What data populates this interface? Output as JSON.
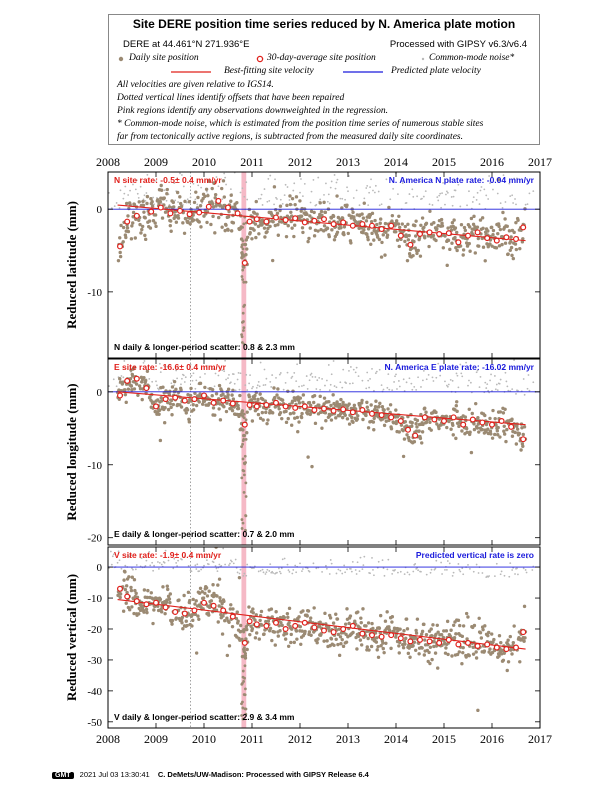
{
  "header": {
    "title": "Site DERE position time series reduced by N. America plate motion",
    "site_location": "DERE at 44.461°N 271.936°E",
    "processed_with": "Processed with GIPSY v6.3/v6.4",
    "legend_daily": "Daily site position",
    "legend_avg": "30-day-average site position",
    "legend_cm": "Common-mode noise*",
    "legend_best": "Best-fitting site velocity",
    "legend_pred": "Predicted plate velocity",
    "notes": [
      "All velocities are given relative to IGS14.",
      "Dotted vertical lines identify offsets that have been repaired",
      "Pink regions identify any observations downweighted in the regression.",
      "* Common-mode noise, which is estimated from the position time series of numerous stable sites",
      "far from tectonically active regions, is subtracted from the measured daily site coordinates."
    ]
  },
  "colors": {
    "daily": "#9b8a73",
    "common_mode": "#b9b9b9",
    "average": "#e0201b",
    "best_fit": "#e0201b",
    "predicted": "#1a1adc",
    "pink": "#f2a8b8"
  },
  "chart_data": [
    {
      "type": "scatter",
      "id": "north",
      "ylabel": "Reduced latitude (mm)",
      "xlim": [
        2008,
        2017
      ],
      "ylim": [
        -18,
        4.5
      ],
      "yticks": [
        0,
        -10
      ],
      "xticks": [
        2008,
        2009,
        2010,
        2011,
        2012,
        2013,
        2014,
        2015,
        2016,
        2017
      ],
      "grid": false,
      "site_rate_label": "N site rate:  -0.5± 0.4 mm/yr",
      "plate_rate_label": "N. America N plate rate: -0.04 mm/yr",
      "scatter_label": "N daily & longer-period scatter:   0.8 &   2.3 mm",
      "best_fit": {
        "x": [
          2008.2,
          2016.7
        ],
        "y": [
          0.5,
          -3.8
        ]
      },
      "predicted_value": 0,
      "offsets": [
        2009.72
      ],
      "pink_range": [
        2010.78,
        2010.88
      ],
      "avg_points": [
        [
          2008.25,
          -4.5
        ],
        [
          2008.4,
          -1.5
        ],
        [
          2008.6,
          -0.8
        ],
        [
          2008.9,
          -0.3
        ],
        [
          2009.1,
          0.2
        ],
        [
          2009.3,
          -0.5
        ],
        [
          2009.5,
          -0.2
        ],
        [
          2009.7,
          -0.6
        ],
        [
          2009.9,
          -0.4
        ],
        [
          2010.1,
          0.3
        ],
        [
          2010.3,
          1.0
        ],
        [
          2010.5,
          0.2
        ],
        [
          2010.7,
          -0.5
        ],
        [
          2010.85,
          -6.5
        ],
        [
          2010.95,
          -1.5
        ],
        [
          2011.1,
          -1.2
        ],
        [
          2011.3,
          -1.5
        ],
        [
          2011.5,
          -1.0
        ],
        [
          2011.7,
          -1.3
        ],
        [
          2011.9,
          -1.1
        ],
        [
          2012.1,
          -1.6
        ],
        [
          2012.3,
          -1.4
        ],
        [
          2012.5,
          -1.2
        ],
        [
          2012.7,
          -1.8
        ],
        [
          2012.9,
          -1.6
        ],
        [
          2013.1,
          -2.0
        ],
        [
          2013.3,
          -1.8
        ],
        [
          2013.5,
          -2.0
        ],
        [
          2013.7,
          -2.4
        ],
        [
          2013.9,
          -2.0
        ],
        [
          2014.1,
          -3.2
        ],
        [
          2014.3,
          -4.3
        ],
        [
          2014.5,
          -3.0
        ],
        [
          2014.7,
          -2.8
        ],
        [
          2014.9,
          -3.0
        ],
        [
          2015.1,
          -2.9
        ],
        [
          2015.3,
          -4.0
        ],
        [
          2015.5,
          -3.2
        ],
        [
          2015.7,
          -2.8
        ],
        [
          2015.9,
          -3.5
        ],
        [
          2016.1,
          -3.8
        ],
        [
          2016.3,
          -3.4
        ],
        [
          2016.5,
          -3.6
        ],
        [
          2016.65,
          -2.2
        ]
      ]
    },
    {
      "type": "scatter",
      "id": "east",
      "ylabel": "Reduced longitude (mm)",
      "xlim": [
        2008,
        2017
      ],
      "ylim": [
        -21,
        4.5
      ],
      "yticks": [
        0,
        -10,
        -20
      ],
      "xticks": [
        2008,
        2009,
        2010,
        2011,
        2012,
        2013,
        2014,
        2015,
        2016,
        2017
      ],
      "grid": false,
      "site_rate_label": "E site rate: -16.6± 0.4 mm/yr",
      "plate_rate_label": "N. America E plate rate: -16.02 mm/yr",
      "scatter_label": "E daily & longer-period scatter:   0.7 &   2.0 mm",
      "best_fit": {
        "x": [
          2008.2,
          2016.7
        ],
        "y": [
          0.0,
          -4.5
        ]
      },
      "predicted_value": 0,
      "offsets": [
        2009.72
      ],
      "pink_range": [
        2010.78,
        2010.88
      ],
      "avg_points": [
        [
          2008.25,
          -0.5
        ],
        [
          2008.4,
          1.5
        ],
        [
          2008.6,
          1.8
        ],
        [
          2008.8,
          0.5
        ],
        [
          2009.0,
          -2.0
        ],
        [
          2009.2,
          -1.0
        ],
        [
          2009.4,
          -0.8
        ],
        [
          2009.6,
          -1.2
        ],
        [
          2009.8,
          -1.0
        ],
        [
          2010.0,
          -0.5
        ],
        [
          2010.2,
          -1.5
        ],
        [
          2010.4,
          -1.2
        ],
        [
          2010.6,
          -1.6
        ],
        [
          2010.85,
          -4.5
        ],
        [
          2010.95,
          -1.8
        ],
        [
          2011.1,
          -2.0
        ],
        [
          2011.3,
          -1.8
        ],
        [
          2011.5,
          -1.5
        ],
        [
          2011.7,
          -2.0
        ],
        [
          2011.9,
          -2.2
        ],
        [
          2012.1,
          -2.0
        ],
        [
          2012.3,
          -2.5
        ],
        [
          2012.5,
          -2.3
        ],
        [
          2012.7,
          -2.6
        ],
        [
          2012.9,
          -2.4
        ],
        [
          2013.1,
          -2.8
        ],
        [
          2013.3,
          -2.5
        ],
        [
          2013.5,
          -3.0
        ],
        [
          2013.7,
          -3.2
        ],
        [
          2013.9,
          -3.5
        ],
        [
          2014.1,
          -4.0
        ],
        [
          2014.25,
          -5.2
        ],
        [
          2014.4,
          -6.0
        ],
        [
          2014.6,
          -3.5
        ],
        [
          2014.8,
          -3.8
        ],
        [
          2015.0,
          -4.0
        ],
        [
          2015.2,
          -3.5
        ],
        [
          2015.4,
          -4.5
        ],
        [
          2015.6,
          -3.8
        ],
        [
          2015.8,
          -4.2
        ],
        [
          2016.0,
          -4.5
        ],
        [
          2016.2,
          -4.0
        ],
        [
          2016.4,
          -4.8
        ],
        [
          2016.65,
          -6.5
        ]
      ]
    },
    {
      "type": "scatter",
      "id": "vertical",
      "ylabel": "Reduced vertical (mm)",
      "xlim": [
        2008,
        2017
      ],
      "ylim": [
        -52,
        6.5
      ],
      "yticks": [
        0,
        -10,
        -20,
        -30,
        -40,
        -50
      ],
      "xticks": [
        2008,
        2009,
        2010,
        2011,
        2012,
        2013,
        2014,
        2015,
        2016,
        2017
      ],
      "grid": false,
      "site_rate_label": "V site rate:  -1.9± 0.4 mm/yr",
      "plate_rate_label": "Predicted vertical rate is zero",
      "scatter_label": "V daily & longer-period scatter:   2.9 &   3.4 mm",
      "best_fit": {
        "x": [
          2008.2,
          2016.7
        ],
        "y": [
          -10.5,
          -26.5
        ]
      },
      "predicted_value": 0,
      "offsets": [
        2009.72
      ],
      "pink_range": [
        2010.78,
        2010.88
      ],
      "avg_points": [
        [
          2008.25,
          -7.0
        ],
        [
          2008.4,
          -9.5
        ],
        [
          2008.6,
          -11.0
        ],
        [
          2008.8,
          -12.0
        ],
        [
          2009.0,
          -11.5
        ],
        [
          2009.2,
          -13.0
        ],
        [
          2009.4,
          -14.5
        ],
        [
          2009.6,
          -15.0
        ],
        [
          2009.8,
          -14.0
        ],
        [
          2010.0,
          -11.5
        ],
        [
          2010.2,
          -12.5
        ],
        [
          2010.4,
          -14.0
        ],
        [
          2010.6,
          -16.0
        ],
        [
          2010.85,
          -24.5
        ],
        [
          2010.95,
          -17.5
        ],
        [
          2011.1,
          -18.5
        ],
        [
          2011.3,
          -19.0
        ],
        [
          2011.5,
          -18.0
        ],
        [
          2011.7,
          -20.0
        ],
        [
          2011.9,
          -19.0
        ],
        [
          2012.1,
          -18.0
        ],
        [
          2012.3,
          -19.5
        ],
        [
          2012.5,
          -20.5
        ],
        [
          2012.7,
          -21.0
        ],
        [
          2012.9,
          -20.0
        ],
        [
          2013.1,
          -19.0
        ],
        [
          2013.3,
          -21.5
        ],
        [
          2013.5,
          -22.0
        ],
        [
          2013.7,
          -22.5
        ],
        [
          2013.9,
          -22.0
        ],
        [
          2014.1,
          -23.0
        ],
        [
          2014.3,
          -24.0
        ],
        [
          2014.5,
          -23.5
        ],
        [
          2014.7,
          -24.0
        ],
        [
          2014.9,
          -24.5
        ],
        [
          2015.1,
          -23.5
        ],
        [
          2015.3,
          -25.0
        ],
        [
          2015.5,
          -24.5
        ],
        [
          2015.7,
          -25.5
        ],
        [
          2015.9,
          -25.0
        ],
        [
          2016.1,
          -26.0
        ],
        [
          2016.3,
          -26.5
        ],
        [
          2016.5,
          -26.0
        ],
        [
          2016.65,
          -21.0
        ]
      ]
    }
  ],
  "footer": {
    "logo": "GMT",
    "timestamp": "2021 Jul 03 13:30:41",
    "credit": "C. DeMets/UW-Madison: Processed with GIPSY Release 6.4"
  }
}
